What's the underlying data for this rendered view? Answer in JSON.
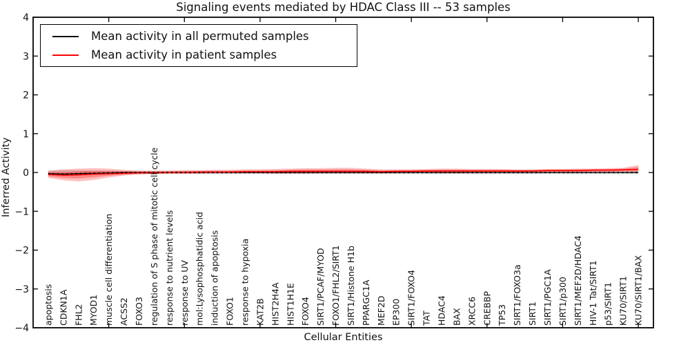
{
  "title": "Signaling events mediated by HDAC Class III -- 53 samples",
  "axes": {
    "xlabel": "Cellular Entities",
    "ylabel": "Inferred Activity",
    "ylim": [
      -4,
      4
    ],
    "xlim": [
      0,
      41
    ],
    "yticks": [
      -4,
      -3,
      -2,
      -1,
      0,
      1,
      2,
      3,
      4
    ],
    "ytick_labels": [
      "−4",
      "−3",
      "−2",
      "−1",
      "0",
      "1",
      "2",
      "3",
      "4"
    ],
    "xtick_positions": [
      5,
      10,
      15,
      20,
      25,
      30,
      35,
      40
    ]
  },
  "legend": {
    "entries": [
      {
        "label": "Mean activity in all permuted samples",
        "color": "#000000"
      },
      {
        "label": "Mean activity in patient samples",
        "color": "#ff0000"
      }
    ]
  },
  "chart_data": {
    "type": "line",
    "title": "Signaling events mediated by HDAC Class III -- 53 samples",
    "xlabel": "Cellular Entities",
    "ylabel": "Inferred Activity",
    "ylim": [
      -4,
      4
    ],
    "grid": false,
    "legend_position": "upper left",
    "categories": [
      "apoptosis",
      "CDKN1A",
      "FHL2",
      "MYOD1",
      "muscle cell differentiation",
      "ACSS2",
      "FOXO3",
      "regulation of S phase of mitotic cell cycle",
      "response to nutrient levels",
      "response to UV",
      "mol:Lysophosphatidic acid",
      "induction of apoptosis",
      "FOXO1",
      "response to hypoxia",
      "KAT2B",
      "HIST2H4A",
      "HIST1H1E",
      "FOXO4",
      "SIRT1/PCAF/MYOD",
      "FOXO1/FHL2/SIRT1",
      "SIRT1/Histone H1b",
      "PPARGC1A",
      "MEF2D",
      "EP300",
      "SIRT1/FOXO4",
      "TAT",
      "HDAC4",
      "BAX",
      "XRCC6",
      "CREBBP",
      "TP53",
      "SIRT1/FOXO3a",
      "SIRT1",
      "SIRT1/PGC1A",
      "SIRT1/p300",
      "SIRT1/MEF2D/HDAC4",
      "HIV-1 Tat/SIRT1",
      "p53/SIRT1",
      "KU70/SIRT1",
      "KU70/SIRT1/BAX"
    ],
    "series": [
      {
        "name": "Mean activity in all permuted samples",
        "color": "#000000",
        "band_color": "rgba(0,0,0,0.15)",
        "values": [
          -0.03,
          -0.04,
          -0.03,
          -0.02,
          -0.01,
          0,
          0,
          0,
          0,
          0,
          0,
          0,
          0,
          0,
          0,
          0,
          0,
          0,
          0,
          0,
          0,
          0,
          0,
          0,
          0,
          0,
          0,
          0,
          0,
          0,
          0,
          0,
          0,
          0,
          0,
          0,
          0,
          0,
          0,
          0
        ],
        "band_upper": [
          0.05,
          0.06,
          0.06,
          0.05,
          0.05,
          0.04,
          0.04,
          0.04,
          0.04,
          0.04,
          0.04,
          0.04,
          0.04,
          0.04,
          0.04,
          0.04,
          0.04,
          0.04,
          0.04,
          0.04,
          0.04,
          0.04,
          0.04,
          0.04,
          0.04,
          0.04,
          0.04,
          0.04,
          0.04,
          0.04,
          0.04,
          0.04,
          0.04,
          0.04,
          0.04,
          0.04,
          0.04,
          0.04,
          0.04,
          0.04
        ],
        "band_lower": [
          -0.06,
          -0.07,
          -0.07,
          -0.06,
          -0.05,
          -0.04,
          -0.04,
          -0.04,
          -0.04,
          -0.04,
          -0.04,
          -0.04,
          -0.04,
          -0.04,
          -0.04,
          -0.04,
          -0.04,
          -0.04,
          -0.04,
          -0.04,
          -0.04,
          -0.04,
          -0.04,
          -0.04,
          -0.04,
          -0.04,
          -0.04,
          -0.04,
          -0.04,
          -0.04,
          -0.04,
          -0.04,
          -0.04,
          -0.04,
          -0.04,
          -0.04,
          -0.04,
          -0.04,
          -0.04,
          -0.04
        ]
      },
      {
        "name": "Mean activity in patient samples",
        "color": "#ff0000",
        "band_color": "rgba(255,0,0,0.25)",
        "values": [
          -0.05,
          -0.07,
          -0.06,
          -0.04,
          -0.03,
          -0.02,
          -0.01,
          -0.01,
          0,
          0,
          0.01,
          0.01,
          0.01,
          0.02,
          0.02,
          0.02,
          0.03,
          0.03,
          0.03,
          0.03,
          0.03,
          0.03,
          0.02,
          0.03,
          0.03,
          0.04,
          0.04,
          0.04,
          0.04,
          0.04,
          0.04,
          0.04,
          0.04,
          0.05,
          0.05,
          0.05,
          0.06,
          0.06,
          0.07,
          0.08
        ],
        "band_upper": [
          0.05,
          0.08,
          0.1,
          0.11,
          0.1,
          0.07,
          0.05,
          0.05,
          0.05,
          0.06,
          0.06,
          0.07,
          0.07,
          0.08,
          0.08,
          0.09,
          0.1,
          0.11,
          0.11,
          0.12,
          0.12,
          0.1,
          0.08,
          0.08,
          0.08,
          0.09,
          0.1,
          0.1,
          0.09,
          0.09,
          0.09,
          0.08,
          0.08,
          0.09,
          0.09,
          0.1,
          0.1,
          0.11,
          0.12,
          0.19
        ],
        "band_lower": [
          -0.14,
          -0.2,
          -0.23,
          -0.19,
          -0.13,
          -0.08,
          -0.05,
          -0.04,
          -0.03,
          -0.03,
          -0.03,
          -0.02,
          -0.02,
          -0.02,
          -0.02,
          -0.03,
          -0.03,
          -0.03,
          -0.02,
          -0.02,
          -0.02,
          -0.02,
          -0.02,
          -0.02,
          -0.01,
          -0.01,
          -0.02,
          -0.02,
          -0.01,
          -0.01,
          -0.01,
          -0.01,
          0,
          0,
          0,
          0,
          0.01,
          0.01,
          0.01,
          0
        ]
      }
    ]
  }
}
